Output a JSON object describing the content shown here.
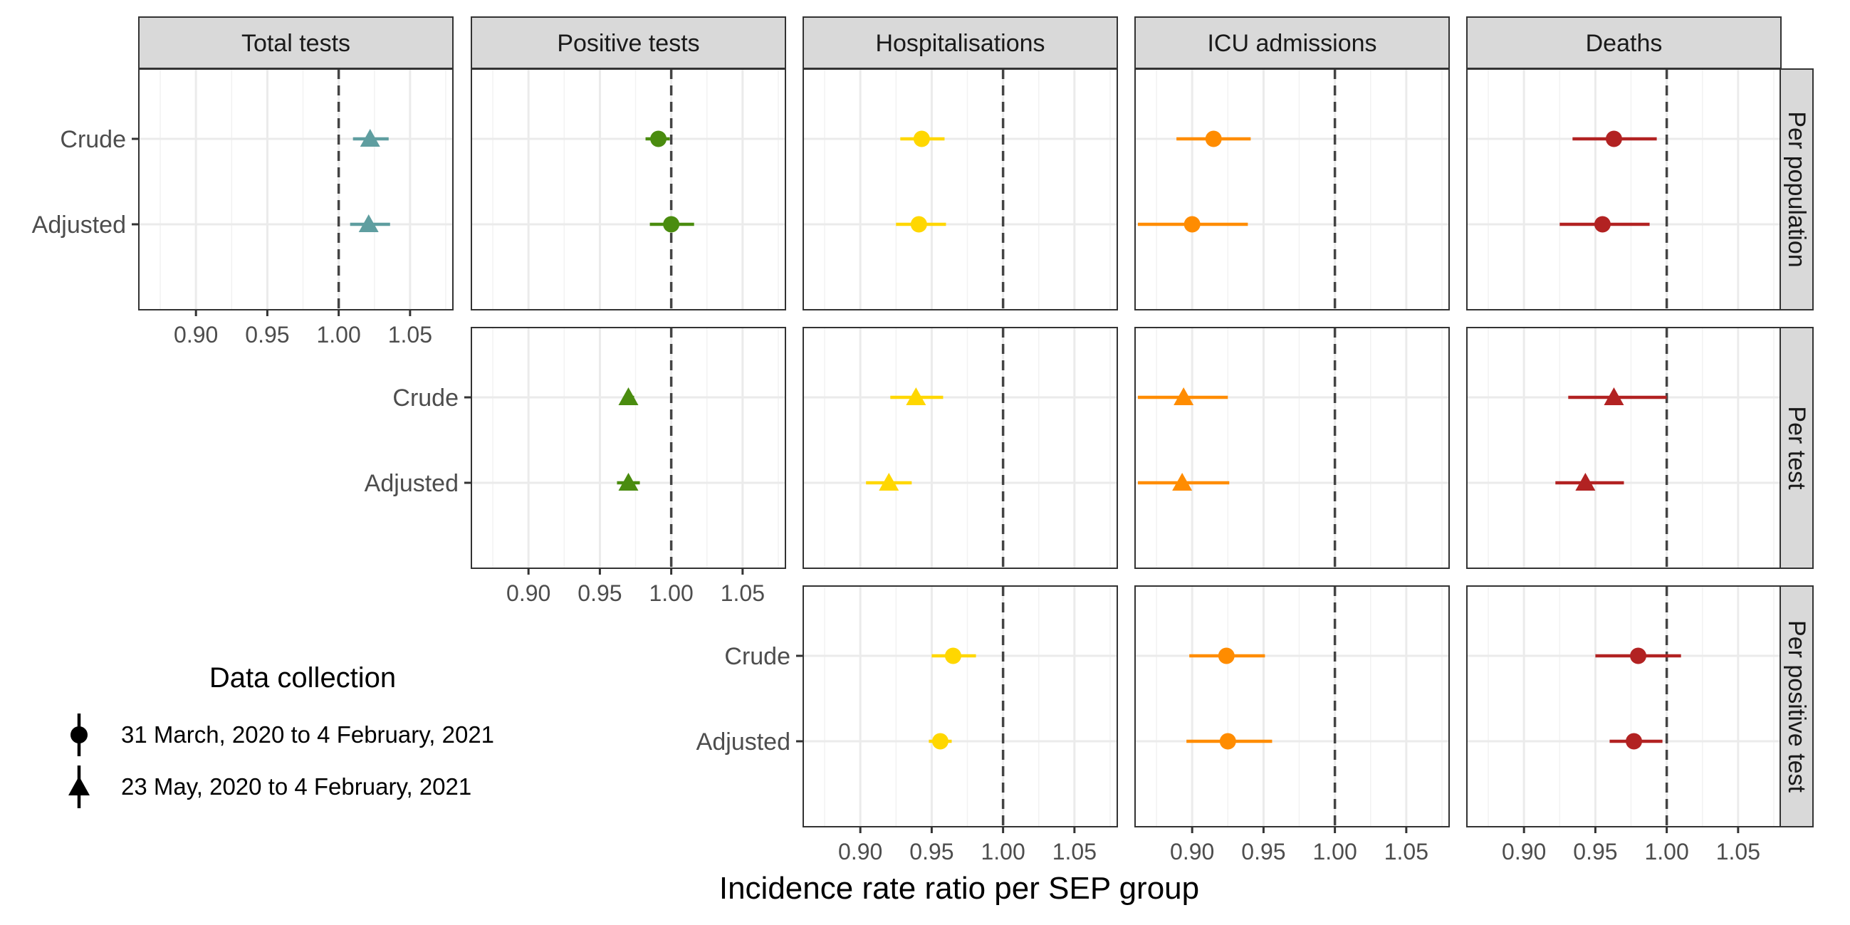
{
  "chart_data": {
    "type": "forest-plot",
    "xlabel": "Incidence rate ratio per SEP group",
    "xlim": [
      0.86,
      1.08
    ],
    "xticks": [
      0.9,
      0.95,
      1.0,
      1.05
    ],
    "xtick_labels": [
      "0.90",
      "0.95",
      "1.00",
      "1.05"
    ],
    "reference_line": 1.0,
    "grid": true,
    "columns": [
      "Total tests",
      "Positive tests",
      "Hospitalisations",
      "ICU admissions",
      "Deaths"
    ],
    "rows": [
      "Per population",
      "Per test",
      "Per positive test"
    ],
    "categories": [
      "Crude",
      "Adjusted"
    ],
    "colors": {
      "Total tests": "#5f9ea0",
      "Positive tests": "#4a8c0f",
      "Hospitalisations": "#ffd700",
      "ICU admissions": "#ff8c00",
      "Deaths": "#b22222"
    },
    "legend": {
      "title": "Data collection",
      "placement": "bottom-left",
      "items": [
        {
          "shape": "circle",
          "label": "31 March, 2020 to 4 February, 2021"
        },
        {
          "shape": "triangle",
          "label": "23 May, 2020 to 4 February, 2021"
        }
      ]
    },
    "panels": [
      {
        "row": "Per population",
        "col": "Total tests",
        "shape": "triangle",
        "points": [
          {
            "cat": "Crude",
            "est": 1.022,
            "lo": 1.01,
            "hi": 1.035
          },
          {
            "cat": "Adjusted",
            "est": 1.021,
            "lo": 1.008,
            "hi": 1.036
          }
        ]
      },
      {
        "row": "Per population",
        "col": "Positive tests",
        "shape": "circle",
        "points": [
          {
            "cat": "Crude",
            "est": 0.991,
            "lo": 0.982,
            "hi": 0.999
          },
          {
            "cat": "Adjusted",
            "est": 1.0,
            "lo": 0.985,
            "hi": 1.016
          }
        ]
      },
      {
        "row": "Per population",
        "col": "Hospitalisations",
        "shape": "circle",
        "points": [
          {
            "cat": "Crude",
            "est": 0.943,
            "lo": 0.928,
            "hi": 0.959
          },
          {
            "cat": "Adjusted",
            "est": 0.941,
            "lo": 0.925,
            "hi": 0.96
          }
        ]
      },
      {
        "row": "Per population",
        "col": "ICU admissions",
        "shape": "circle",
        "points": [
          {
            "cat": "Crude",
            "est": 0.915,
            "lo": 0.889,
            "hi": 0.941
          },
          {
            "cat": "Adjusted",
            "est": 0.9,
            "lo": 0.862,
            "hi": 0.939
          }
        ]
      },
      {
        "row": "Per population",
        "col": "Deaths",
        "shape": "circle",
        "points": [
          {
            "cat": "Crude",
            "est": 0.963,
            "lo": 0.934,
            "hi": 0.993
          },
          {
            "cat": "Adjusted",
            "est": 0.955,
            "lo": 0.925,
            "hi": 0.988
          }
        ]
      },
      {
        "row": "Per test",
        "col": "Positive tests",
        "shape": "triangle",
        "points": [
          {
            "cat": "Crude",
            "est": 0.97,
            "lo": 0.967,
            "hi": 0.974
          },
          {
            "cat": "Adjusted",
            "est": 0.97,
            "lo": 0.962,
            "hi": 0.978
          }
        ]
      },
      {
        "row": "Per test",
        "col": "Hospitalisations",
        "shape": "triangle",
        "points": [
          {
            "cat": "Crude",
            "est": 0.939,
            "lo": 0.921,
            "hi": 0.958
          },
          {
            "cat": "Adjusted",
            "est": 0.92,
            "lo": 0.904,
            "hi": 0.936
          }
        ]
      },
      {
        "row": "Per test",
        "col": "ICU admissions",
        "shape": "triangle",
        "points": [
          {
            "cat": "Crude",
            "est": 0.894,
            "lo": 0.862,
            "hi": 0.925
          },
          {
            "cat": "Adjusted",
            "est": 0.893,
            "lo": 0.862,
            "hi": 0.926
          }
        ]
      },
      {
        "row": "Per test",
        "col": "Deaths",
        "shape": "triangle",
        "points": [
          {
            "cat": "Crude",
            "est": 0.963,
            "lo": 0.931,
            "hi": 1.0
          },
          {
            "cat": "Adjusted",
            "est": 0.943,
            "lo": 0.922,
            "hi": 0.97
          }
        ]
      },
      {
        "row": "Per positive test",
        "col": "Hospitalisations",
        "shape": "circle",
        "points": [
          {
            "cat": "Crude",
            "est": 0.965,
            "lo": 0.95,
            "hi": 0.981
          },
          {
            "cat": "Adjusted",
            "est": 0.956,
            "lo": 0.948,
            "hi": 0.964
          }
        ]
      },
      {
        "row": "Per positive test",
        "col": "ICU admissions",
        "shape": "circle",
        "points": [
          {
            "cat": "Crude",
            "est": 0.924,
            "lo": 0.898,
            "hi": 0.951
          },
          {
            "cat": "Adjusted",
            "est": 0.925,
            "lo": 0.896,
            "hi": 0.956
          }
        ]
      },
      {
        "row": "Per positive test",
        "col": "Deaths",
        "shape": "circle",
        "points": [
          {
            "cat": "Crude",
            "est": 0.98,
            "lo": 0.95,
            "hi": 1.01
          },
          {
            "cat": "Adjusted",
            "est": 0.977,
            "lo": 0.96,
            "hi": 0.997
          }
        ]
      }
    ]
  }
}
